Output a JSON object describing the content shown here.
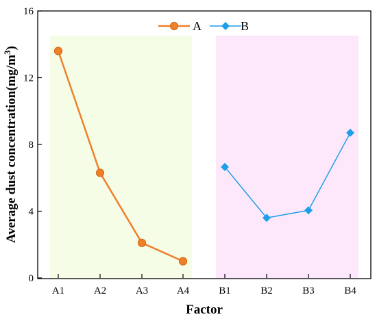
{
  "colors": {
    "series_a": "#f07f2a",
    "series_b": "#1f9ee8",
    "region_a": "#f5fde6",
    "region_b": "#fde8fb"
  },
  "chart_data": {
    "type": "line",
    "xlabel": "Factor",
    "ylabel": "Average dust concentration(mg/m³)",
    "ylabel_base": "Average dust concentration(mg/m",
    "ylabel_sup": "3",
    "ylabel_end": ")",
    "ylim": [
      0,
      16
    ],
    "yticks": [
      "0",
      "4",
      "8",
      "12",
      "16"
    ],
    "categories": [
      "A1",
      "A2",
      "A3",
      "A4",
      "B1",
      "B2",
      "B3",
      "B4"
    ],
    "grid": false,
    "legend_position": "top-center",
    "series": [
      {
        "name": "A",
        "marker": "circle",
        "x": [
          "A1",
          "A2",
          "A3",
          "A4"
        ],
        "values": [
          13.6,
          6.3,
          2.1,
          1.0
        ]
      },
      {
        "name": "B",
        "marker": "diamond",
        "x": [
          "B1",
          "B2",
          "B3",
          "B4"
        ],
        "values": [
          6.65,
          3.6,
          4.05,
          8.7
        ]
      }
    ]
  }
}
